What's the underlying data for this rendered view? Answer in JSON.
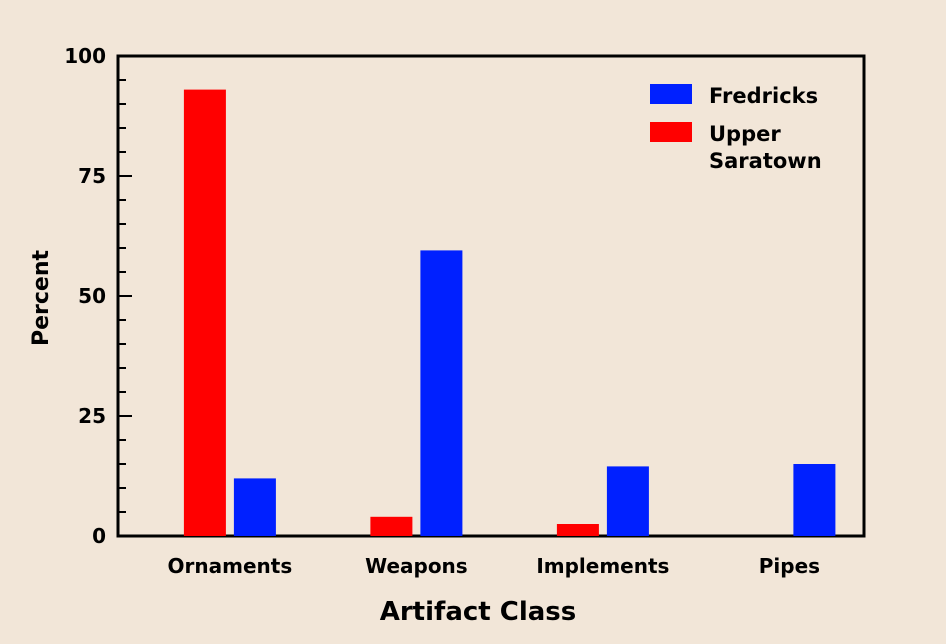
{
  "chart_data": {
    "type": "bar",
    "xlabel": "Artifact Class",
    "ylabel": "Percent",
    "categories": [
      "Ornaments",
      "Weapons",
      "Implements",
      "Pipes"
    ],
    "series": [
      {
        "name": "Upper Saratown",
        "name_lines": [
          "Upper",
          "Saratown"
        ],
        "color": "#ff0000",
        "values": [
          93,
          4,
          2.5,
          0
        ]
      },
      {
        "name": "Fredricks",
        "name_lines": [
          "Fredricks"
        ],
        "color": "#0020ff",
        "values": [
          12,
          59.5,
          14.5,
          15
        ]
      }
    ],
    "legend_order": [
      1,
      0
    ],
    "ylim": [
      0,
      100
    ],
    "yticks": [
      0,
      25,
      50,
      75,
      100
    ],
    "ytick_labels": [
      "0",
      "25",
      "50",
      "75",
      "100"
    ],
    "legend_position": "top-right",
    "grid": false
  },
  "colors": {
    "background": "#f2e6d8",
    "axis": "#000000"
  }
}
